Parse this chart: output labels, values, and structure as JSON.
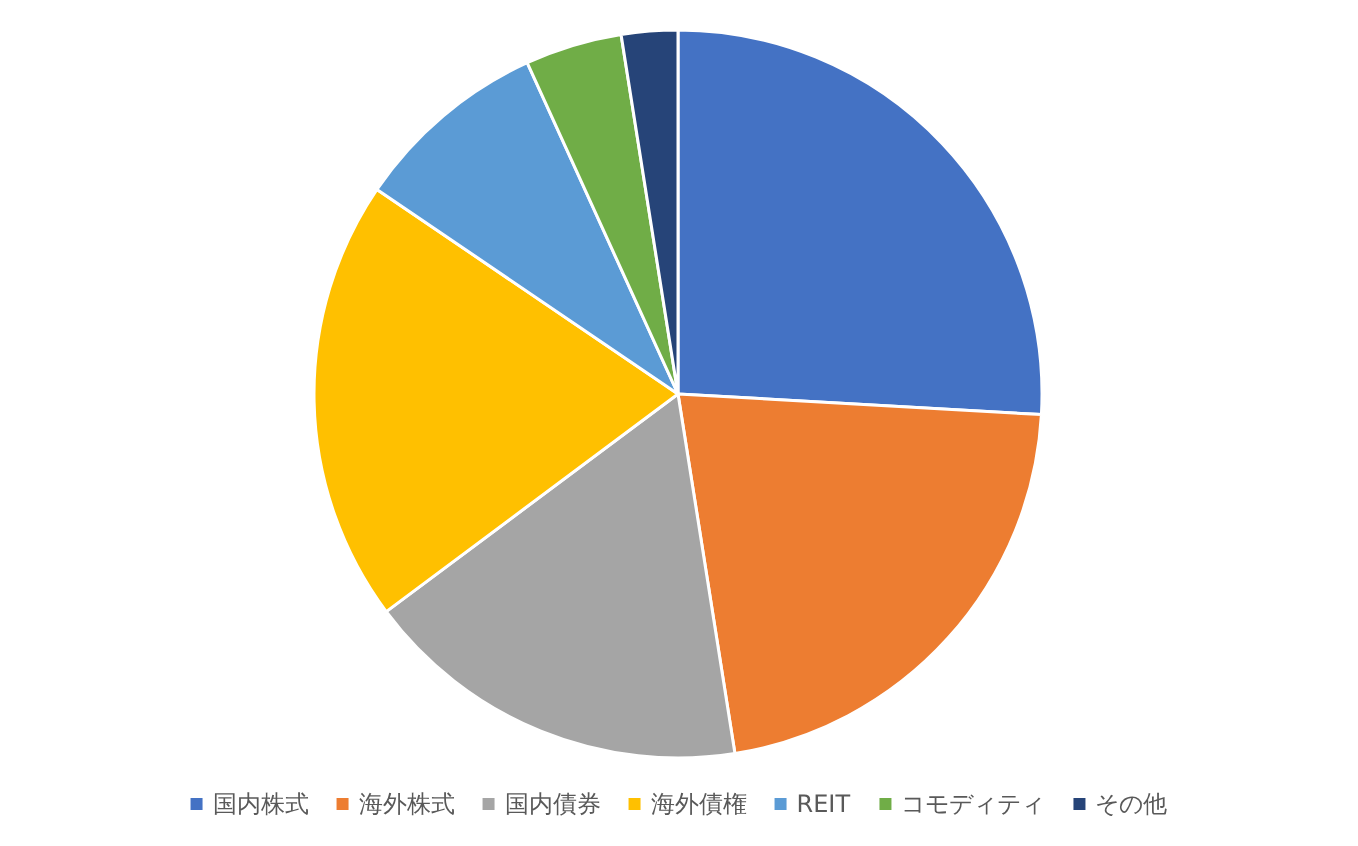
{
  "chart_data": {
    "type": "pie",
    "categories": [
      "国内株式",
      "海外株式",
      "国内債券",
      "海外債権",
      "REIT",
      "コモディティ",
      "その他"
    ],
    "values": [
      25.9,
      21.6,
      17.3,
      19.7,
      8.7,
      4.3,
      2.5
    ],
    "colors": [
      "#4472c4",
      "#ed7d31",
      "#a5a5a5",
      "#ffc000",
      "#5b9bd5",
      "#70ad47",
      "#264478"
    ],
    "legend": "bottom"
  }
}
